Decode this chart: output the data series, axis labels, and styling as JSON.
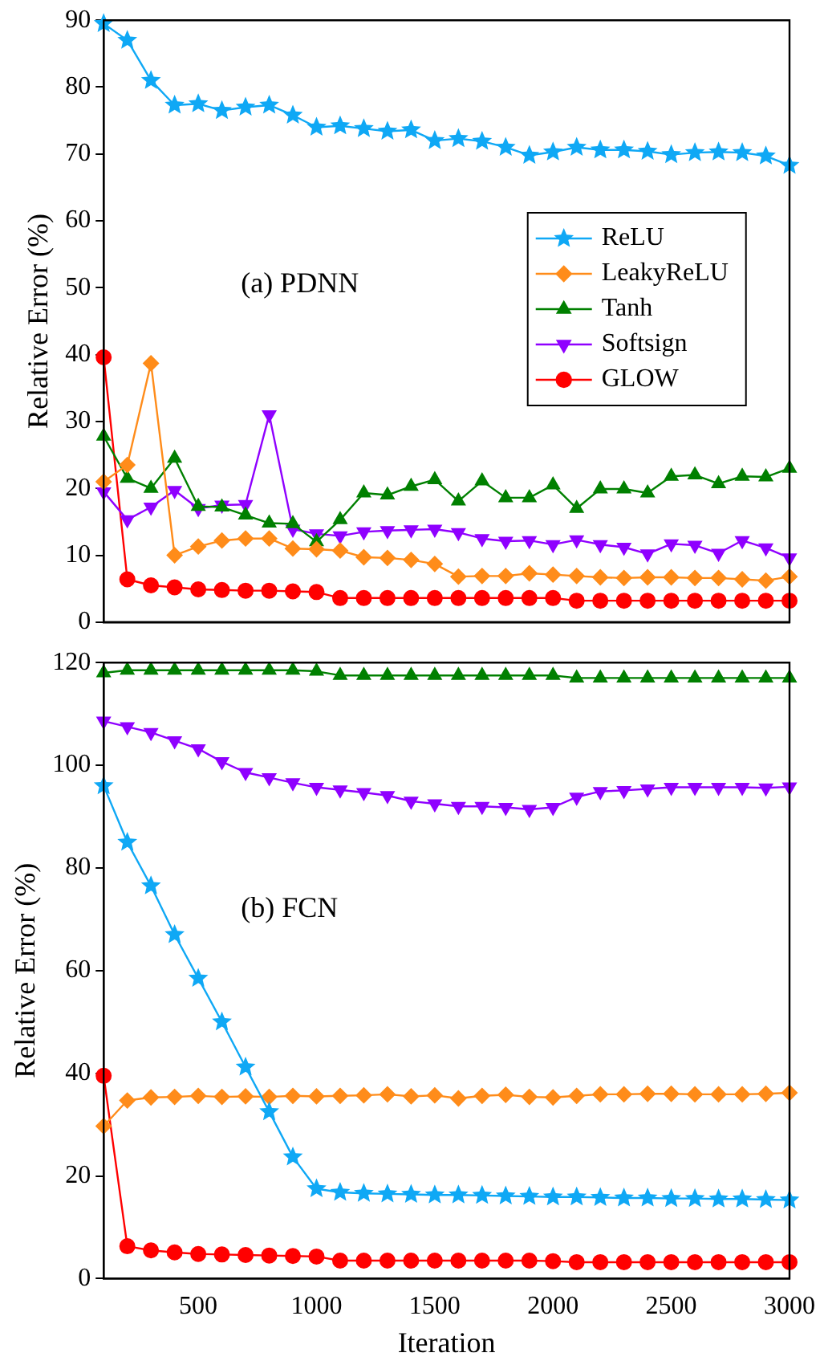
{
  "chart_data": [
    {
      "type": "line",
      "annotations": [
        "(a) PDNN"
      ],
      "ylabel": "Relative Error (%)",
      "x": [
        100,
        200,
        300,
        400,
        500,
        600,
        700,
        800,
        900,
        1000,
        1100,
        1200,
        1300,
        1400,
        1500,
        1600,
        1700,
        1800,
        1900,
        2000,
        2100,
        2200,
        2300,
        2400,
        2500,
        2600,
        2700,
        2800,
        2900,
        3000
      ],
      "xlim": [
        100,
        3000
      ],
      "xticks": [
        500,
        1000,
        1500,
        2000,
        2500,
        3000
      ],
      "ylim": [
        0,
        90
      ],
      "yticks": [
        0,
        10,
        20,
        30,
        40,
        50,
        60,
        70,
        80,
        90
      ],
      "tick_labels": "y",
      "legend": "right",
      "grid": false,
      "series": [
        {
          "name": "ReLU",
          "color": "#0fa8f5",
          "marker": "star",
          "values": [
            89.5,
            87,
            81,
            77.3,
            77.5,
            76.5,
            77,
            77.3,
            75.8,
            74,
            74.2,
            73.8,
            73.4,
            73.6,
            72,
            72.3,
            71.9,
            71,
            69.8,
            70.3,
            71,
            70.6,
            70.6,
            70.4,
            69.9,
            70.2,
            70.3,
            70.2,
            69.7,
            68.3
          ]
        },
        {
          "name": "LeakyReLU",
          "color": "#ff8c1a",
          "marker": "diamond",
          "values": [
            21,
            23.5,
            38.7,
            10,
            11.3,
            12.2,
            12.5,
            12.5,
            11,
            10.9,
            10.7,
            9.7,
            9.6,
            9.3,
            8.7,
            6.8,
            6.9,
            6.9,
            7.3,
            7.1,
            6.9,
            6.7,
            6.6,
            6.7,
            6.7,
            6.6,
            6.6,
            6.4,
            6.2,
            6.8
          ]
        },
        {
          "name": "Tanh",
          "color": "#008000",
          "marker": "triangle",
          "values": [
            27.8,
            21.5,
            20,
            24.5,
            17.3,
            17.2,
            16,
            14.8,
            14.7,
            12,
            15.3,
            19.3,
            19,
            20.3,
            21.3,
            18.1,
            21.1,
            18.6,
            18.6,
            20.5,
            17,
            19.9,
            19.9,
            19.3,
            21.8,
            22,
            20.7,
            21.8,
            21.7,
            23
          ]
        },
        {
          "name": "Softsign",
          "color": "#8f00ff",
          "marker": "triangle-down",
          "values": [
            19.5,
            15.3,
            17.2,
            19.7,
            17,
            17.5,
            17.6,
            31,
            13.9,
            13.2,
            12.9,
            13.5,
            13.7,
            13.8,
            13.9,
            13.4,
            12.5,
            12.1,
            12.2,
            11.6,
            12.3,
            11.6,
            11.2,
            10.2,
            11.7,
            11.5,
            10.3,
            12.2,
            11.1,
            9.6
          ]
        },
        {
          "name": "GLOW",
          "color": "#ff0000",
          "marker": "circle",
          "values": [
            39.6,
            6.4,
            5.5,
            5.2,
            4.9,
            4.8,
            4.7,
            4.7,
            4.6,
            4.5,
            3.6,
            3.6,
            3.6,
            3.6,
            3.6,
            3.6,
            3.6,
            3.6,
            3.6,
            3.6,
            3.2,
            3.2,
            3.2,
            3.2,
            3.2,
            3.2,
            3.2,
            3.2,
            3.2,
            3.2
          ]
        }
      ]
    },
    {
      "type": "line",
      "annotations": [
        "(b) FCN"
      ],
      "xlabel": "Iteration",
      "ylabel": "Relative Error (%)",
      "x": [
        100,
        200,
        300,
        400,
        500,
        600,
        700,
        800,
        900,
        1000,
        1100,
        1200,
        1300,
        1400,
        1500,
        1600,
        1700,
        1800,
        1900,
        2000,
        2100,
        2200,
        2300,
        2400,
        2500,
        2600,
        2700,
        2800,
        2900,
        3000
      ],
      "xlim": [
        100,
        3000
      ],
      "xticks": [
        500,
        1000,
        1500,
        2000,
        2500,
        3000
      ],
      "ylim": [
        0,
        120
      ],
      "yticks": [
        0,
        20,
        40,
        60,
        80,
        100,
        120
      ],
      "grid": false,
      "series": [
        {
          "color": "#0fa8f5",
          "marker": "star",
          "values": [
            96,
            85,
            76.5,
            67,
            58.5,
            50,
            41.2,
            32.5,
            23.7,
            17.5,
            16.8,
            16.6,
            16.5,
            16.4,
            16.3,
            16.3,
            16.2,
            16.1,
            16,
            15.9,
            15.9,
            15.8,
            15.7,
            15.7,
            15.6,
            15.6,
            15.5,
            15.5,
            15.4,
            15.3
          ]
        },
        {
          "color": "#ff8c1a",
          "marker": "diamond",
          "values": [
            29.7,
            34.7,
            35.3,
            35.4,
            35.6,
            35.4,
            35.5,
            35.4,
            35.6,
            35.5,
            35.6,
            35.7,
            35.9,
            35.5,
            35.7,
            35.1,
            35.6,
            35.8,
            35.4,
            35.3,
            35.6,
            35.9,
            35.9,
            36,
            36,
            35.9,
            35.9,
            35.9,
            36,
            36.2
          ]
        },
        {
          "color": "#008000",
          "marker": "triangle",
          "values": [
            118,
            118.5,
            118.5,
            118.5,
            118.5,
            118.5,
            118.5,
            118.5,
            118.5,
            118.3,
            117.5,
            117.5,
            117.5,
            117.5,
            117.5,
            117.5,
            117.5,
            117.5,
            117.5,
            117.5,
            117,
            117,
            117,
            117,
            117,
            117,
            117,
            117,
            117,
            117
          ]
        },
        {
          "color": "#8f00ff",
          "marker": "triangle-down",
          "values": [
            108.6,
            107.5,
            106.4,
            104.8,
            103.2,
            100.7,
            98.6,
            97.6,
            96.6,
            95.7,
            95.2,
            94.7,
            94.1,
            93,
            92.5,
            92,
            92,
            91.8,
            91.4,
            91.8,
            93.8,
            94.9,
            95.1,
            95.4,
            95.7,
            95.7,
            95.7,
            95.7,
            95.6,
            95.8
          ]
        },
        {
          "color": "#ff0000",
          "marker": "circle",
          "values": [
            39.5,
            6.3,
            5.5,
            5.1,
            4.8,
            4.7,
            4.6,
            4.5,
            4.4,
            4.3,
            3.5,
            3.5,
            3.5,
            3.5,
            3.5,
            3.5,
            3.5,
            3.5,
            3.5,
            3.4,
            3.2,
            3.2,
            3.2,
            3.2,
            3.2,
            3.2,
            3.2,
            3.2,
            3.2,
            3.2
          ]
        }
      ]
    }
  ]
}
